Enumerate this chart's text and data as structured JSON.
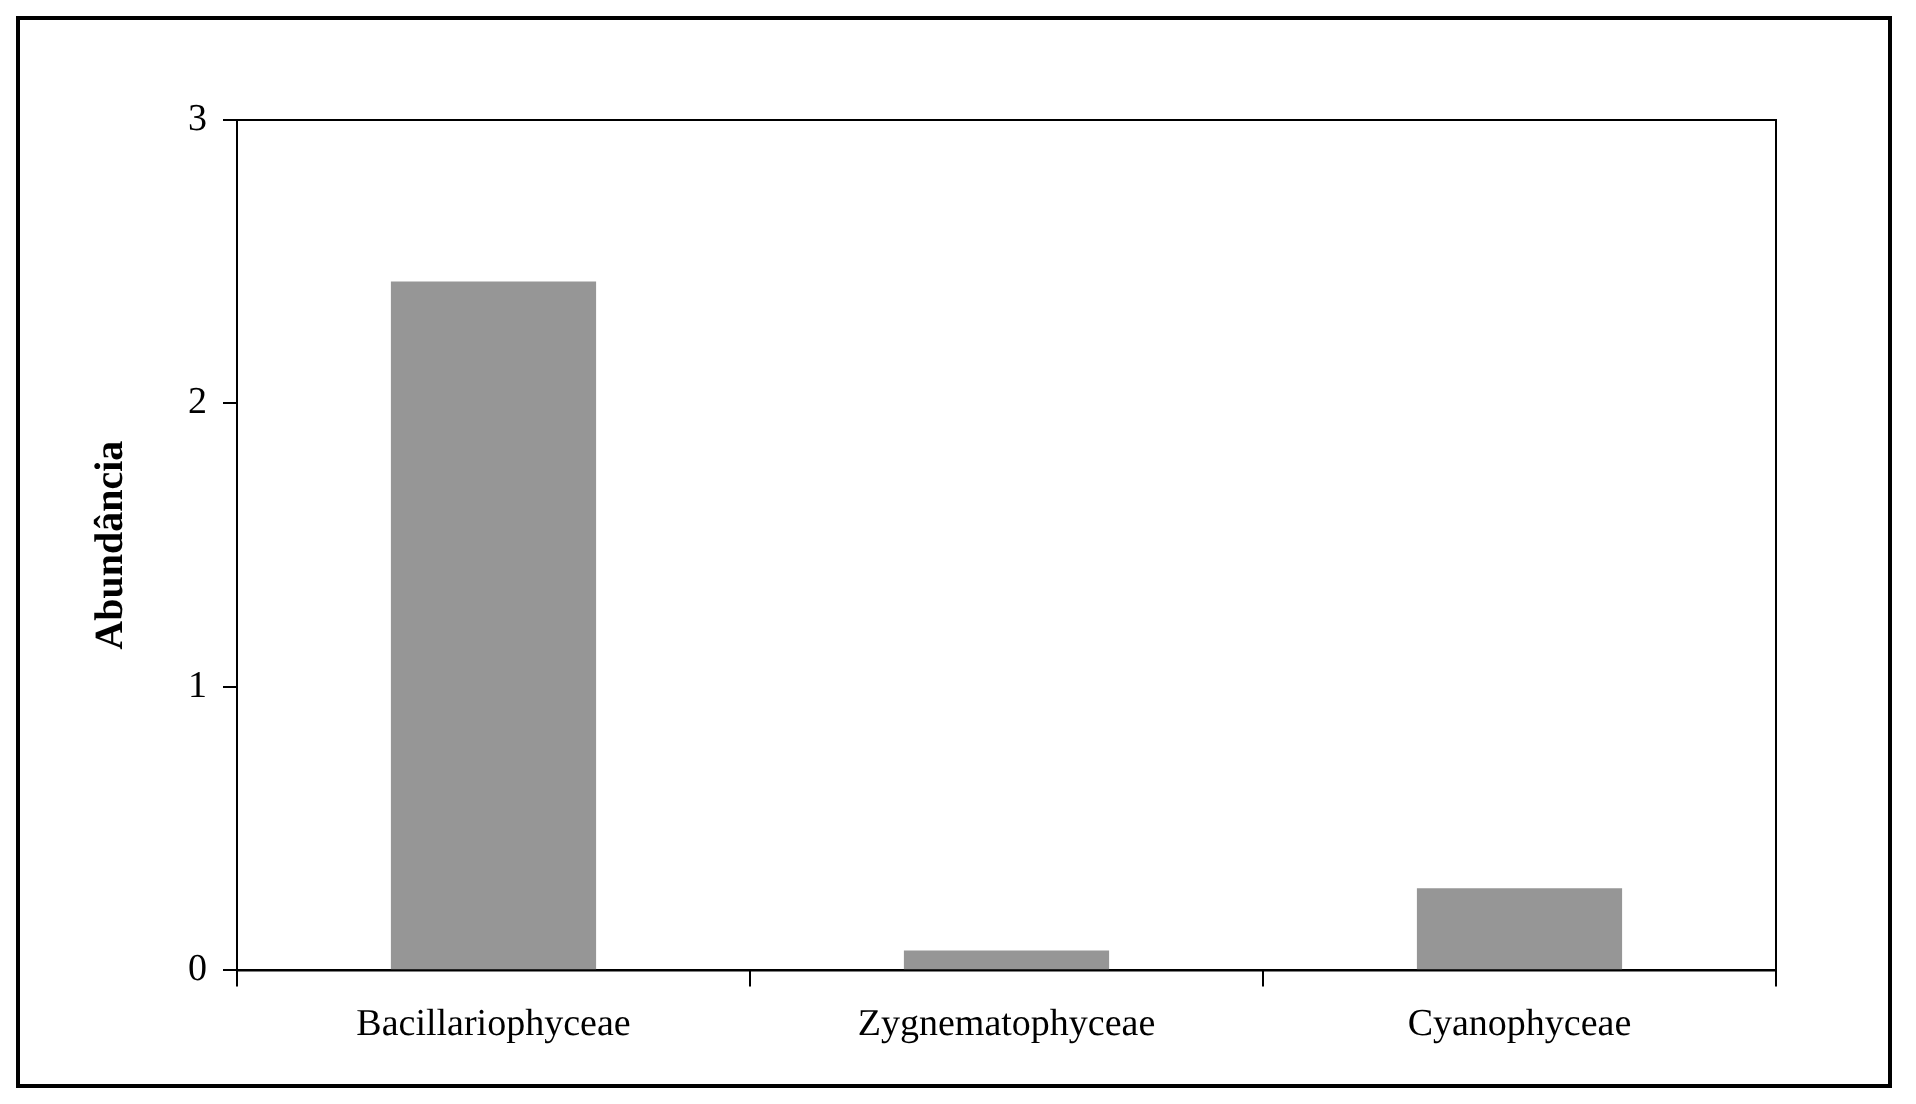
{
  "chart_data": {
    "type": "bar",
    "ylabel": "Abundância",
    "categories": [
      "Bacillariophyceae",
      "Zygnematophyceae",
      "Cyanophyceae"
    ],
    "values": [
      2.43,
      0.07,
      0.29
    ],
    "color": "#969696",
    "ylim": [
      0,
      3
    ],
    "yticks": [
      0,
      1,
      2,
      3
    ],
    "grid": false
  }
}
